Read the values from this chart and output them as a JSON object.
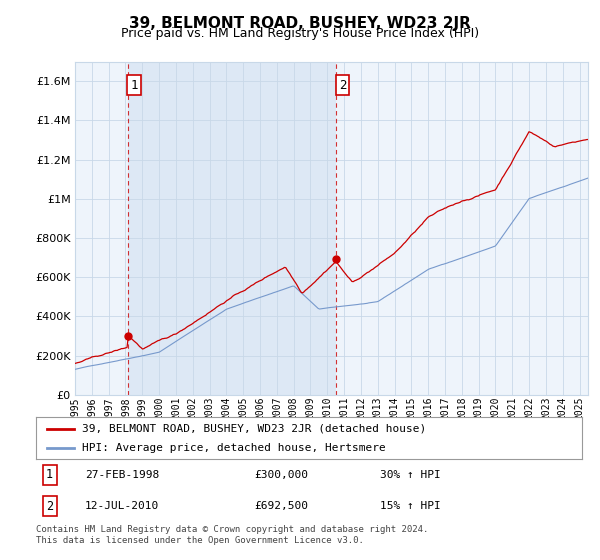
{
  "title": "39, BELMONT ROAD, BUSHEY, WD23 2JR",
  "subtitle": "Price paid vs. HM Land Registry's House Price Index (HPI)",
  "title_fontsize": 11,
  "subtitle_fontsize": 9,
  "ylim": [
    0,
    1700000
  ],
  "yticks": [
    0,
    200000,
    400000,
    600000,
    800000,
    1000000,
    1200000,
    1400000,
    1600000
  ],
  "ytick_labels": [
    "£0",
    "£200K",
    "£400K",
    "£600K",
    "£800K",
    "£1M",
    "£1.2M",
    "£1.4M",
    "£1.6M"
  ],
  "sale1_year": 1998.15,
  "sale1_price": 300000,
  "sale2_year": 2010.53,
  "sale2_price": 692500,
  "sale1_label": "1",
  "sale2_label": "2",
  "red_color": "#cc0000",
  "blue_color": "#7799cc",
  "dashed_color": "#cc0000",
  "grid_color": "#c8d8e8",
  "bg_color": "#eef4fb",
  "highlight_color": "#dde8f5",
  "background_color": "#ffffff",
  "legend_line1": "39, BELMONT ROAD, BUSHEY, WD23 2JR (detached house)",
  "legend_line2": "HPI: Average price, detached house, Hertsmere",
  "table_row1": [
    "1",
    "27-FEB-1998",
    "£300,000",
    "30% ↑ HPI"
  ],
  "table_row2": [
    "2",
    "12-JUL-2010",
    "£692,500",
    "15% ↑ HPI"
  ],
  "footer": "Contains HM Land Registry data © Crown copyright and database right 2024.\nThis data is licensed under the Open Government Licence v3.0.",
  "xlim_start": 1995.0,
  "xlim_end": 2025.5
}
